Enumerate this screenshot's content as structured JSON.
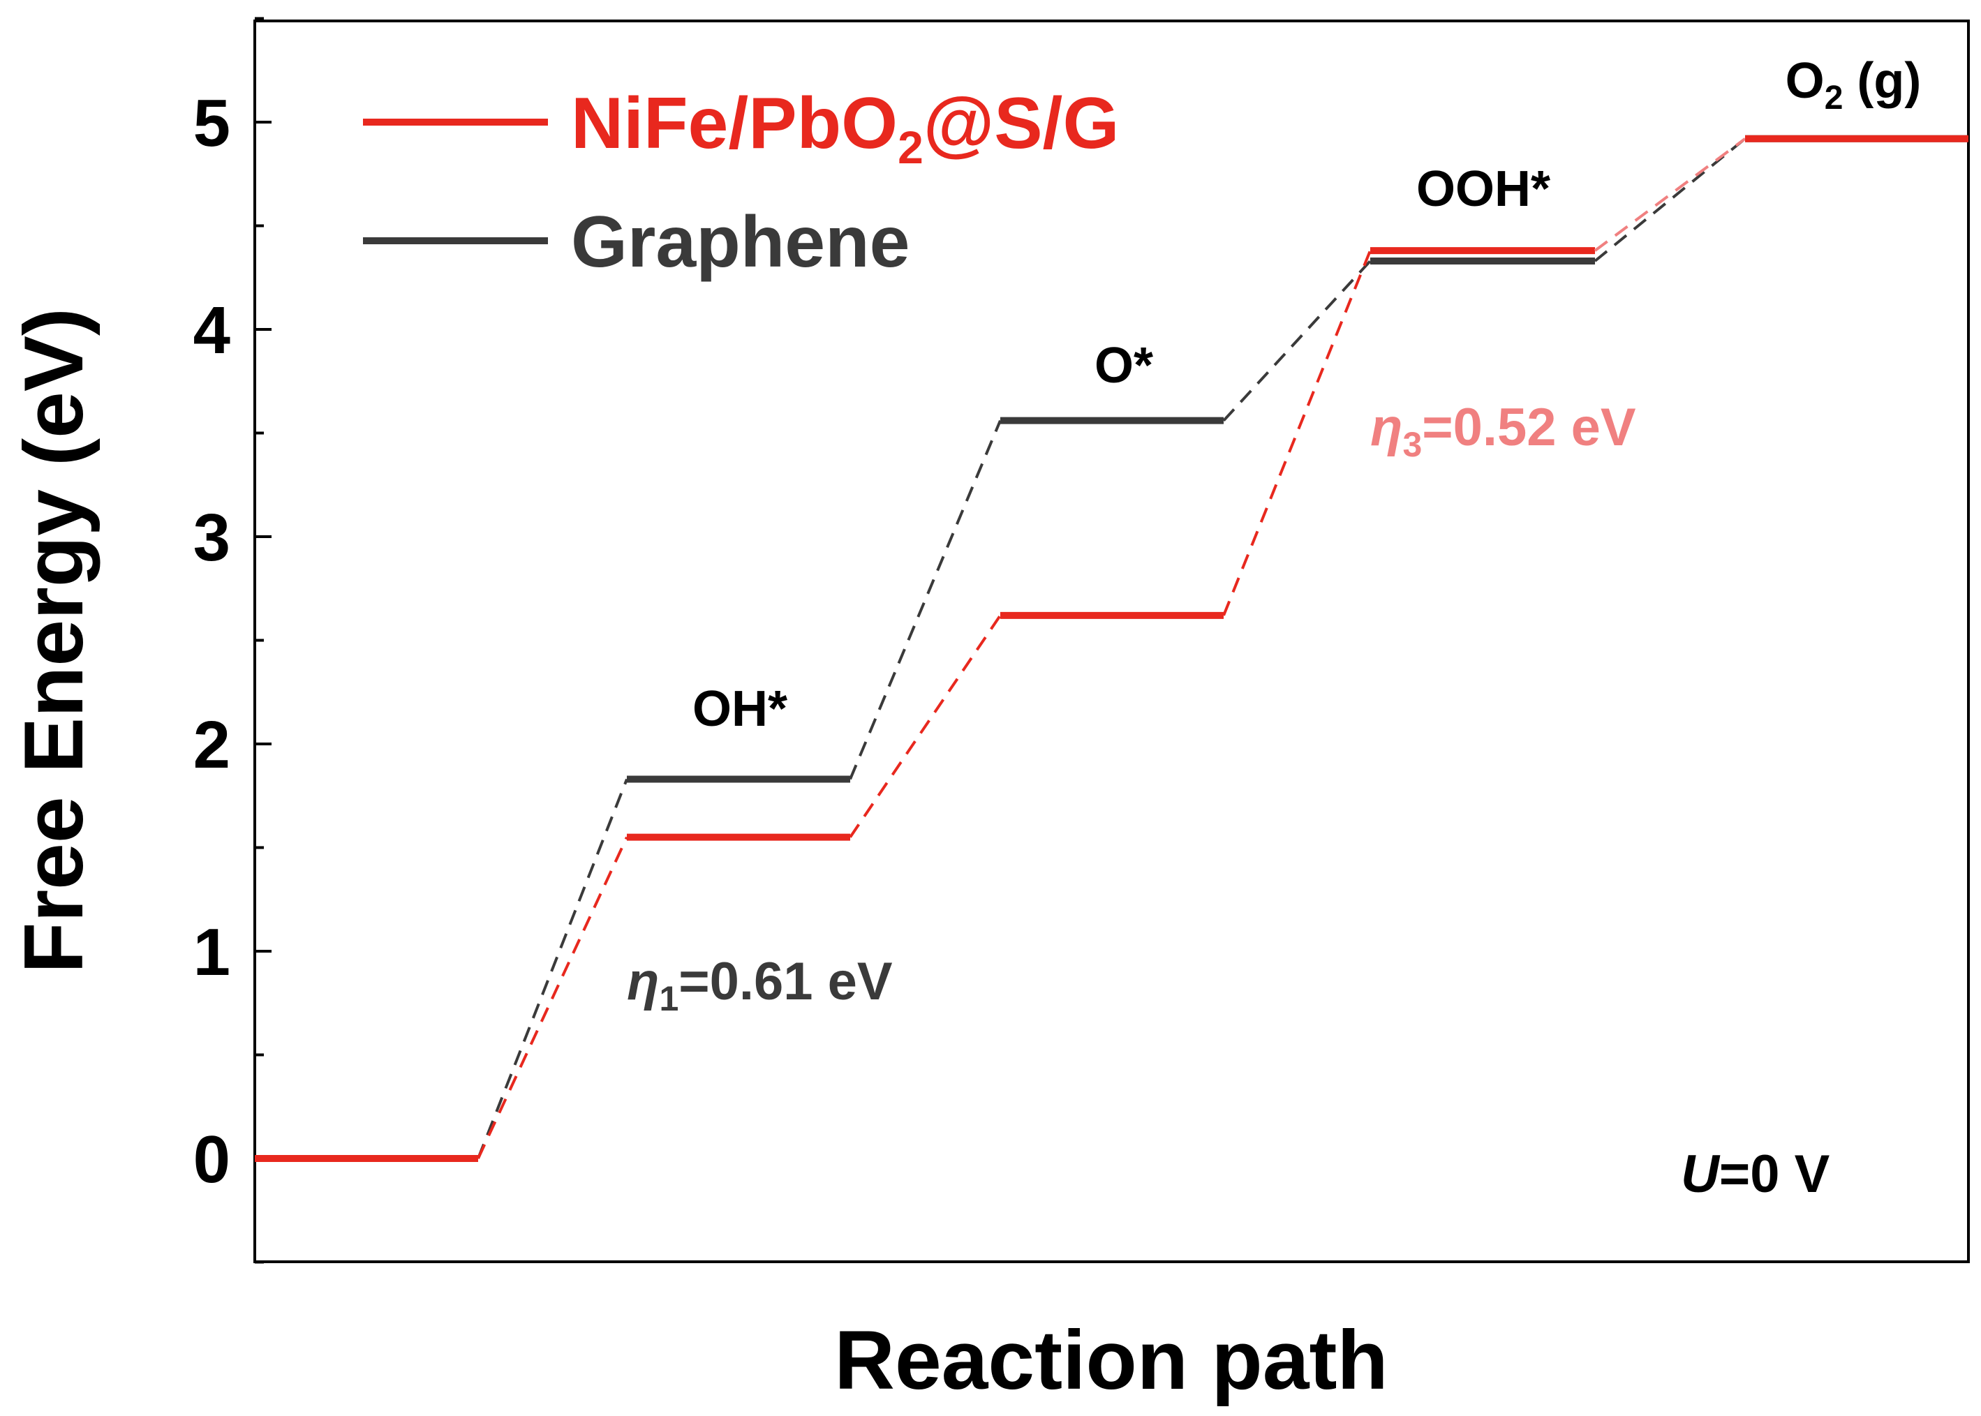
{
  "chart_data": {
    "type": "line",
    "xlabel": "Reaction path",
    "ylabel": "Free Energy (eV)",
    "ylim": [
      -0.5,
      5.5
    ],
    "yticks": [
      "0",
      "1",
      "2",
      "3",
      "4",
      "5"
    ],
    "states": [
      "",
      "OH*",
      "O*",
      "OOH*",
      "O2 (g)"
    ],
    "state_labels": {
      "s1": "OH*",
      "s2": "O*",
      "s3": "OOH*",
      "s4_main": "O",
      "s4_sub": "2",
      "s4_tail": " (g)"
    },
    "series": [
      {
        "name": "NiFe/PbO2@S/G",
        "legend": {
          "main": "NiFe/PbO",
          "sub": "2",
          "tail": "@S/G"
        },
        "color": "#e8281e",
        "values": [
          0,
          1.55,
          2.62,
          4.38,
          4.92
        ]
      },
      {
        "name": "Graphene",
        "legend": {
          "main": "Graphene"
        },
        "color": "#3a3a3a",
        "values": [
          0,
          1.83,
          3.56,
          4.33,
          4.92
        ]
      }
    ],
    "annotations": {
      "eta1": {
        "symbol": "η",
        "sub": "1",
        "text": "=0.61 eV",
        "color": "#3a3a3a"
      },
      "eta3": {
        "symbol": "η",
        "sub": "3",
        "text": "=0.52 eV",
        "color": "#f08080"
      },
      "potential": {
        "symbol": "U",
        "text": "=0 V",
        "color": "#000000"
      }
    },
    "grid": false,
    "legend_position": "top-left"
  }
}
